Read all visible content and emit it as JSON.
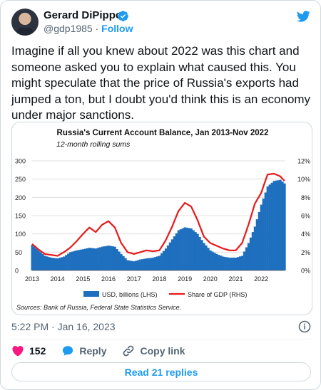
{
  "author": {
    "name": "Gerard DiPippo",
    "handle": "@gdp1985",
    "separator": "·",
    "follow_label": "Follow"
  },
  "tweet": {
    "text": "Imagine if all you knew about 2022 was this chart and someone asked you to explain what caused this. You might speculate that the price of Russia's exports had jumped a ton, but I doubt you'd think this is an economy under major sanctions."
  },
  "meta": {
    "timestamp": "5:22 PM · Jan 16, 2023"
  },
  "actions": {
    "like_count": "152",
    "reply_label": "Reply",
    "copy_label": "Copy link"
  },
  "read_replies_label": "Read 21 replies",
  "colors": {
    "accent": "#1d9bf0",
    "like": "#f91880",
    "bar": "#1f6fbf",
    "line": "#e8191a"
  },
  "icons": [
    "verified-badge-icon",
    "twitter-bird-icon",
    "info-icon",
    "heart-icon",
    "reply-bubble-icon",
    "link-icon"
  ],
  "chart_data": {
    "type": "area",
    "title": "Russia's Current Account Balance, Jan 2013-Nov 2022",
    "subtitle": "12-month rolling sums",
    "source": "Sources: Bank of Russia, Federal State Statistics Service.",
    "x_ticks": [
      "2013",
      "2014",
      "2015",
      "2016",
      "2017",
      "2018",
      "2019",
      "2020",
      "2021",
      "2022"
    ],
    "y_left_ticks": [
      "0",
      "50",
      "100",
      "150",
      "200",
      "250",
      "300"
    ],
    "y_right_ticks": [
      "0%",
      "2%",
      "4%",
      "6%",
      "8%",
      "10%",
      "12%"
    ],
    "ylim_left": [
      0,
      300
    ],
    "ylim_right": [
      0,
      12
    ],
    "x_start": 2013.0,
    "x_end": 2022.92,
    "legend": {
      "bar_label": "USD, billions (LHS)",
      "line_label": "Share of GDP (RHS)",
      "placement": "bottom"
    },
    "series": [
      {
        "name": "USD, billions (LHS)",
        "kind": "bar",
        "x": [
          2013.0,
          2013.25,
          2013.5,
          2013.75,
          2014.0,
          2014.25,
          2014.5,
          2014.75,
          2015.0,
          2015.25,
          2015.5,
          2015.75,
          2016.0,
          2016.25,
          2016.5,
          2016.75,
          2017.0,
          2017.25,
          2017.5,
          2017.75,
          2018.0,
          2018.25,
          2018.5,
          2018.75,
          2019.0,
          2019.25,
          2019.5,
          2019.75,
          2020.0,
          2020.25,
          2020.5,
          2020.75,
          2021.0,
          2021.25,
          2021.5,
          2021.75,
          2022.0,
          2022.25,
          2022.5,
          2022.75,
          2022.92
        ],
        "values": [
          70,
          55,
          40,
          35,
          33,
          38,
          50,
          55,
          58,
          62,
          60,
          65,
          68,
          65,
          45,
          28,
          25,
          30,
          33,
          35,
          40,
          60,
          85,
          110,
          118,
          115,
          100,
          75,
          55,
          45,
          38,
          35,
          35,
          40,
          75,
          120,
          180,
          230,
          245,
          248,
          238
        ]
      },
      {
        "name": "Share of GDP (RHS)",
        "kind": "line",
        "x": [
          2013.0,
          2013.25,
          2013.5,
          2013.75,
          2014.0,
          2014.25,
          2014.5,
          2014.75,
          2015.0,
          2015.25,
          2015.5,
          2015.75,
          2016.0,
          2016.25,
          2016.5,
          2016.75,
          2017.0,
          2017.25,
          2017.5,
          2017.75,
          2018.0,
          2018.25,
          2018.5,
          2018.75,
          2019.0,
          2019.25,
          2019.5,
          2019.75,
          2020.0,
          2020.25,
          2020.5,
          2020.75,
          2021.0,
          2021.25,
          2021.5,
          2021.75,
          2022.0,
          2022.25,
          2022.5,
          2022.75,
          2022.92
        ],
        "values": [
          2.9,
          2.3,
          1.8,
          1.7,
          1.6,
          2.0,
          2.5,
          3.2,
          4.0,
          4.7,
          4.2,
          5.0,
          5.4,
          4.7,
          3.0,
          2.0,
          1.8,
          2.0,
          2.2,
          2.1,
          2.2,
          3.3,
          4.8,
          6.5,
          7.4,
          7.0,
          5.5,
          3.7,
          3.0,
          2.7,
          2.4,
          2.2,
          2.2,
          3.0,
          5.0,
          7.3,
          8.5,
          10.5,
          10.6,
          10.3,
          9.8
        ]
      }
    ]
  }
}
